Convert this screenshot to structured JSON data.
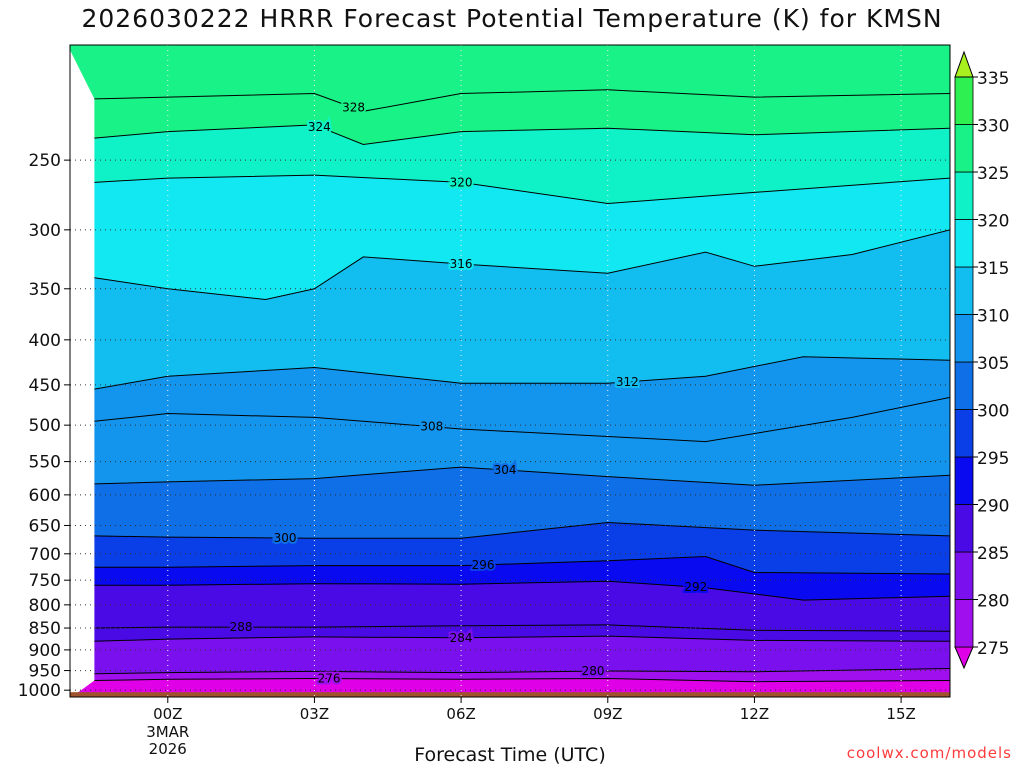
{
  "chart_data": {
    "type": "contour",
    "title": "2026030222 HRRR Forecast Potential Temperature (K) for KMSN",
    "xlabel": "Forecast Time (UTC)",
    "credit": "coolwx.com/models",
    "x_ticks": [
      {
        "label": "00Z",
        "sub": [
          "3MAR",
          "2026"
        ],
        "hour": 0
      },
      {
        "label": "03Z",
        "sub": [],
        "hour": 3
      },
      {
        "label": "06Z",
        "sub": [],
        "hour": 6
      },
      {
        "label": "09Z",
        "sub": [],
        "hour": 9
      },
      {
        "label": "12Z",
        "sub": [],
        "hour": 12
      },
      {
        "label": "15Z",
        "sub": [],
        "hour": 15
      }
    ],
    "xlim_hours": [
      -2,
      16
    ],
    "y_scale": "log",
    "ylim_hPa": [
      1018,
      185
    ],
    "y_ticks": [
      250,
      300,
      350,
      400,
      450,
      500,
      550,
      600,
      650,
      700,
      750,
      800,
      850,
      900,
      950,
      1000
    ],
    "grid": true,
    "colorbar": {
      "levels": [
        275,
        280,
        285,
        290,
        295,
        300,
        305,
        310,
        315,
        320,
        325,
        330,
        335
      ],
      "colors": [
        "#e000e8",
        "#a010ee",
        "#7a10ee",
        "#4a0ae6",
        "#0a0af0",
        "#0a3ee6",
        "#0e6fe6",
        "#1395ee",
        "#12bdf0",
        "#12e8f2",
        "#0ff2c8",
        "#18f286",
        "#2ef050",
        "#a8f020"
      ]
    },
    "ground_color": "#a0522d",
    "isentropes": [
      {
        "theta": 276,
        "label": true,
        "points": [
          [
            -1.5,
            975
          ],
          [
            0,
            972
          ],
          [
            3,
            970
          ],
          [
            6,
            972
          ],
          [
            9,
            970
          ],
          [
            12,
            978
          ],
          [
            16,
            975
          ]
        ]
      },
      {
        "theta": 280,
        "label": true,
        "points": [
          [
            -1.5,
            958
          ],
          [
            0,
            955
          ],
          [
            3,
            952
          ],
          [
            6,
            955
          ],
          [
            9,
            951
          ],
          [
            12,
            953
          ],
          [
            16,
            945
          ]
        ]
      },
      {
        "theta": 284,
        "label": true,
        "points": [
          [
            -1.5,
            880
          ],
          [
            0,
            875
          ],
          [
            3,
            870
          ],
          [
            6,
            872
          ],
          [
            9,
            868
          ],
          [
            12,
            878
          ],
          [
            16,
            880
          ]
        ]
      },
      {
        "theta": 288,
        "label": true,
        "points": [
          [
            -1.5,
            850
          ],
          [
            0,
            848
          ],
          [
            3,
            848
          ],
          [
            6,
            845
          ],
          [
            9,
            843
          ],
          [
            12,
            855
          ],
          [
            16,
            857
          ]
        ]
      },
      {
        "theta": 292,
        "label": true,
        "points": [
          [
            -1.5,
            760
          ],
          [
            0,
            760
          ],
          [
            3,
            757
          ],
          [
            6,
            758
          ],
          [
            9,
            752
          ],
          [
            11,
            765
          ],
          [
            13,
            790
          ],
          [
            16,
            782
          ]
        ]
      },
      {
        "theta": 296,
        "label": true,
        "points": [
          [
            -1.5,
            725
          ],
          [
            0,
            725
          ],
          [
            3,
            722
          ],
          [
            6,
            722
          ],
          [
            9,
            713
          ],
          [
            11,
            705
          ],
          [
            12,
            735
          ],
          [
            16,
            738
          ]
        ]
      },
      {
        "theta": 300,
        "label": true,
        "points": [
          [
            -1.5,
            668
          ],
          [
            0,
            670
          ],
          [
            3,
            672
          ],
          [
            6,
            672
          ],
          [
            9,
            645
          ],
          [
            12,
            658
          ],
          [
            16,
            668
          ]
        ]
      },
      {
        "theta": 304,
        "label": true,
        "points": [
          [
            -1.5,
            583
          ],
          [
            0,
            580
          ],
          [
            3,
            575
          ],
          [
            6,
            558
          ],
          [
            9,
            572
          ],
          [
            12,
            585
          ],
          [
            16,
            570
          ]
        ]
      },
      {
        "theta": 308,
        "label": true,
        "points": [
          [
            -1.5,
            495
          ],
          [
            0,
            485
          ],
          [
            3,
            490
          ],
          [
            6,
            505
          ],
          [
            9,
            515
          ],
          [
            11,
            522
          ],
          [
            14,
            490
          ],
          [
            16,
            465
          ]
        ]
      },
      {
        "theta": 312,
        "label": true,
        "points": [
          [
            -1.5,
            455
          ],
          [
            0,
            440
          ],
          [
            3,
            430
          ],
          [
            6,
            448
          ],
          [
            9,
            448
          ],
          [
            11,
            440
          ],
          [
            13,
            418
          ],
          [
            16,
            422
          ]
        ]
      },
      {
        "theta": 316,
        "label": true,
        "points": [
          [
            -1.5,
            340
          ],
          [
            0,
            350
          ],
          [
            2,
            360
          ],
          [
            3,
            350
          ],
          [
            4,
            322
          ],
          [
            6,
            328
          ],
          [
            9,
            336
          ],
          [
            11,
            318
          ],
          [
            12,
            330
          ],
          [
            14,
            320
          ],
          [
            16,
            300
          ]
        ]
      },
      {
        "theta": 320,
        "label": true,
        "points": [
          [
            -1.5,
            265
          ],
          [
            0,
            262
          ],
          [
            3,
            260
          ],
          [
            6,
            265
          ],
          [
            9,
            280
          ],
          [
            12,
            272
          ],
          [
            16,
            262
          ]
        ]
      },
      {
        "theta": 324,
        "label": true,
        "points": [
          [
            -1.5,
            236
          ],
          [
            0,
            232
          ],
          [
            3,
            228
          ],
          [
            4,
            240
          ],
          [
            6,
            232
          ],
          [
            9,
            230
          ],
          [
            12,
            234
          ],
          [
            16,
            230
          ]
        ]
      },
      {
        "theta": 328,
        "label": true,
        "points": [
          [
            -1.5,
            213
          ],
          [
            0,
            212
          ],
          [
            3,
            210
          ],
          [
            4,
            220
          ],
          [
            6,
            210
          ],
          [
            9,
            208
          ],
          [
            12,
            212
          ],
          [
            16,
            210
          ]
        ]
      }
    ]
  }
}
